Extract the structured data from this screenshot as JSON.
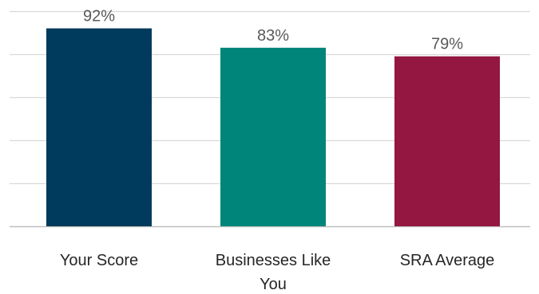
{
  "chart_data": {
    "type": "bar",
    "categories": [
      "Your Score",
      "Businesses Like You",
      "SRA Average"
    ],
    "category_lines": [
      [
        "Your Score"
      ],
      [
        "Businesses Like",
        "You"
      ],
      [
        "SRA Average"
      ]
    ],
    "values": [
      92,
      83,
      79
    ],
    "value_labels": [
      "92%",
      "83%",
      "79%"
    ],
    "bar_colors": [
      "#003a5c",
      "#00857a",
      "#931741"
    ],
    "ylim": [
      0,
      100
    ],
    "gridlines": [
      0,
      20,
      40,
      60,
      80,
      100
    ],
    "grid": true,
    "legend": "none",
    "title": "",
    "xlabel": "",
    "ylabel": ""
  }
}
